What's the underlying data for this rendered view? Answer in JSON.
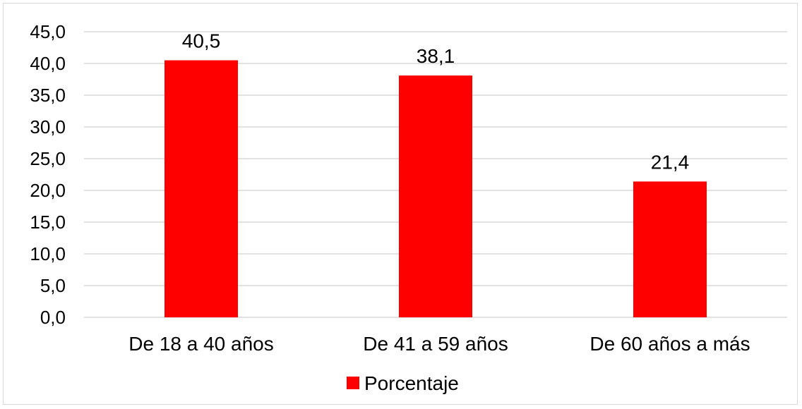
{
  "chart_data": {
    "type": "bar",
    "title": "",
    "xlabel": "",
    "ylabel": "",
    "categories": [
      "De 18 a 40 años",
      "De 41 a 59 años",
      "De 60 años a más"
    ],
    "series": [
      {
        "name": "Porcentaje",
        "values": [
          40.5,
          38.1,
          21.4
        ],
        "color": "#ff0000"
      }
    ],
    "data_labels": [
      "40,5",
      "38,1",
      "21,4"
    ],
    "ylim": [
      0,
      45
    ],
    "yticks": [
      0,
      5,
      10,
      15,
      20,
      25,
      30,
      35,
      40,
      45
    ],
    "ytick_labels": [
      "0,0",
      "5,0",
      "10,0",
      "15,0",
      "20,0",
      "25,0",
      "30,0",
      "35,0",
      "40,0",
      "45,0"
    ],
    "grid": true,
    "grid_color": "#d9d9d9",
    "legend": {
      "position": "bottom",
      "entries": [
        "Porcentaje"
      ]
    }
  }
}
